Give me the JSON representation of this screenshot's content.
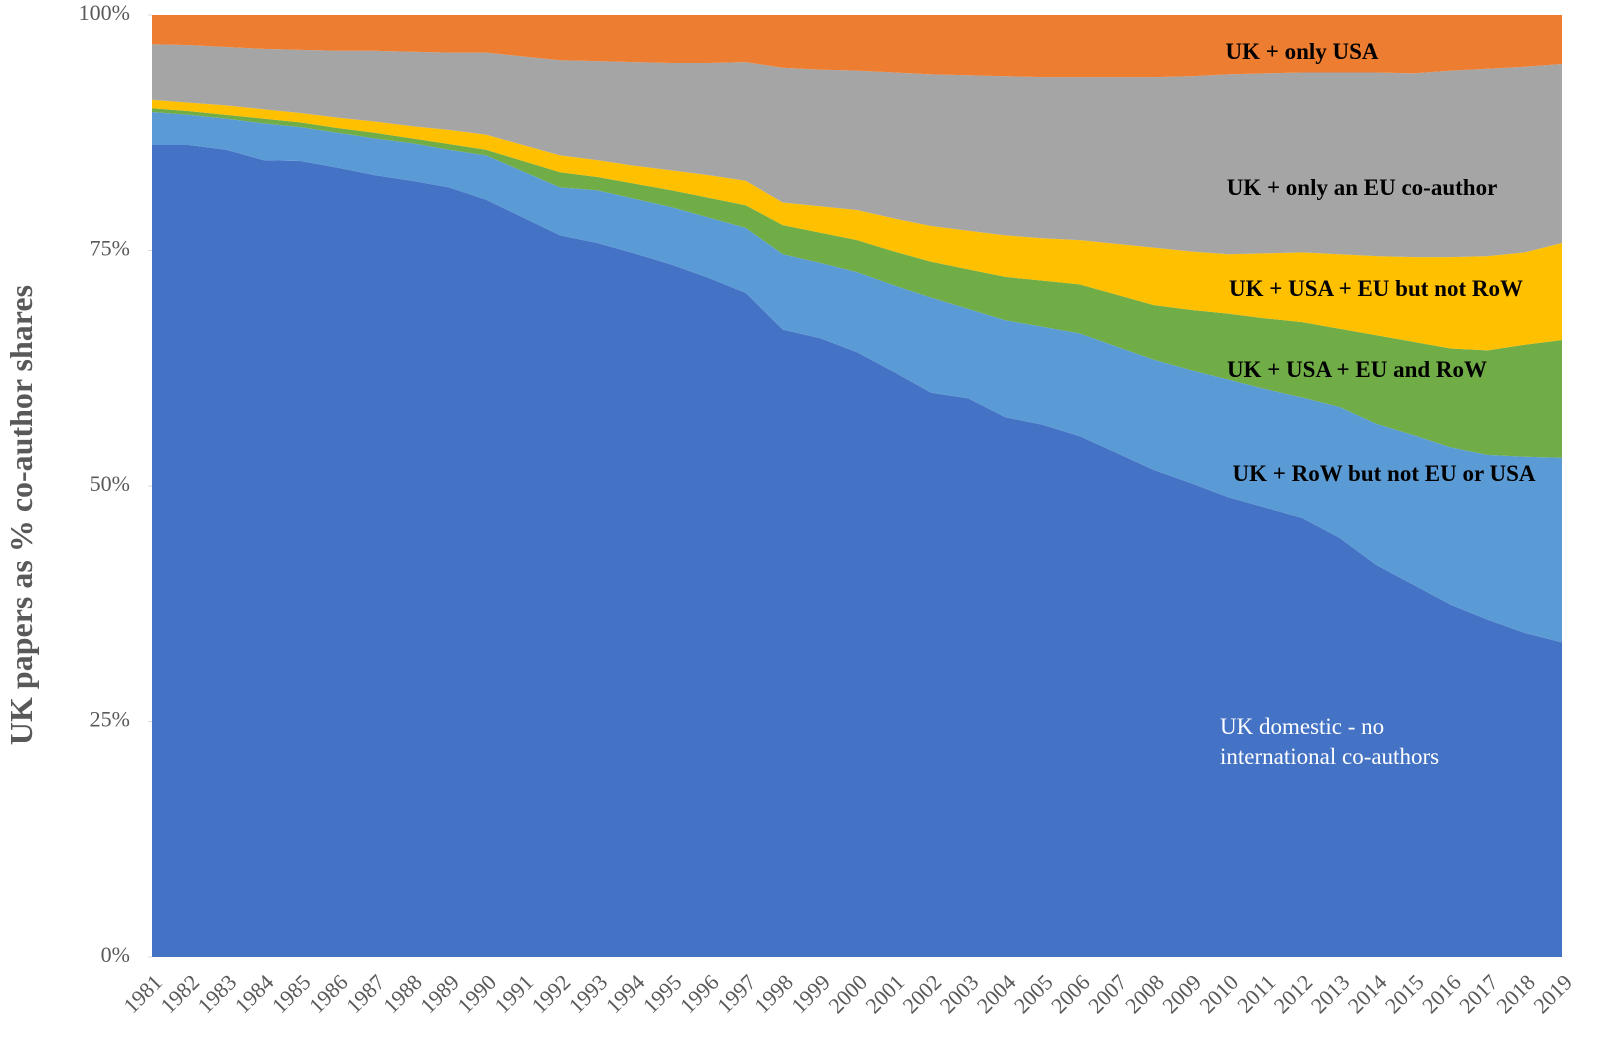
{
  "chart_data": {
    "type": "stacked-area",
    "y_axis_label": "UK papers as % co-author shares",
    "categories": [
      "1981",
      "1982",
      "1983",
      "1984",
      "1985",
      "1986",
      "1987",
      "1988",
      "1989",
      "1990",
      "1991",
      "1992",
      "1993",
      "1994",
      "1995",
      "1996",
      "1997",
      "1998",
      "1999",
      "2000",
      "2001",
      "2002",
      "2003",
      "2004",
      "2005",
      "2006",
      "2007",
      "2008",
      "2009",
      "2010",
      "2011",
      "2012",
      "2013",
      "2014",
      "2015",
      "2016",
      "2017",
      "2018",
      "2019"
    ],
    "ylim": [
      0,
      100
    ],
    "yticks": [
      {
        "value": 0,
        "label": "0%"
      },
      {
        "value": 25,
        "label": "25%"
      },
      {
        "value": 50,
        "label": "50%"
      },
      {
        "value": 75,
        "label": "75%"
      },
      {
        "value": 100,
        "label": "100%"
      }
    ],
    "series": [
      {
        "name": "UK domestic - no international co-authors",
        "color": "#4472c4",
        "values": [
          86.2,
          86.2,
          85.7,
          84.6,
          84.5,
          83.8,
          83.0,
          82.4,
          81.7,
          80.4,
          78.5,
          76.6,
          75.8,
          74.7,
          73.5,
          72.1,
          70.5,
          66.6,
          65.7,
          64.2,
          62.1,
          59.9,
          59.3,
          57.3,
          56.5,
          55.3,
          53.5,
          51.7,
          50.3,
          48.8,
          47.7,
          46.6,
          44.5,
          41.6,
          39.5,
          37.4,
          35.8,
          34.4,
          33.4
        ]
      },
      {
        "name": "UK + RoW but not EU or USA",
        "color": "#5b9bd5",
        "values": [
          3.5,
          3.2,
          3.3,
          3.9,
          3.6,
          3.7,
          3.9,
          4.0,
          4.0,
          4.7,
          4.9,
          5.1,
          5.6,
          5.8,
          6.1,
          6.4,
          6.9,
          8.0,
          8.0,
          8.5,
          9.2,
          10.1,
          9.5,
          10.3,
          10.4,
          10.9,
          11.3,
          11.7,
          12.0,
          12.5,
          12.6,
          12.8,
          13.9,
          15.0,
          15.9,
          16.7,
          17.5,
          18.7,
          19.6
        ]
      },
      {
        "name": "UK + USA + EU and RoW",
        "color": "#70ad47",
        "values": [
          0.4,
          0.4,
          0.4,
          0.5,
          0.5,
          0.5,
          0.6,
          0.5,
          0.6,
          0.6,
          1.1,
          1.6,
          1.4,
          1.6,
          1.8,
          2.1,
          2.4,
          3.1,
          3.2,
          3.4,
          3.6,
          3.8,
          4.2,
          4.6,
          4.9,
          5.2,
          5.5,
          5.8,
          6.4,
          7.0,
          7.5,
          8.0,
          8.3,
          9.4,
          9.9,
          10.5,
          11.1,
          11.9,
          12.5
        ]
      },
      {
        "name": "UK + USA + EU but not RoW",
        "color": "#ffc000",
        "values": [
          0.9,
          0.9,
          1.0,
          1.0,
          1.0,
          1.1,
          1.2,
          1.3,
          1.5,
          1.6,
          1.7,
          1.8,
          1.8,
          1.9,
          2.1,
          2.4,
          2.6,
          2.4,
          2.8,
          3.2,
          3.5,
          3.8,
          4.1,
          4.4,
          4.5,
          4.7,
          5.4,
          6.1,
          6.2,
          6.3,
          6.9,
          7.4,
          7.9,
          8.4,
          9.0,
          9.7,
          10.0,
          9.8,
          10.3
        ]
      },
      {
        "name": "UK + only an EU co-author",
        "color": "#a5a5a5",
        "values": [
          5.9,
          6.1,
          6.2,
          6.4,
          6.7,
          7.1,
          7.5,
          7.9,
          8.2,
          8.7,
          9.4,
          10.1,
          10.5,
          11.0,
          11.4,
          11.9,
          12.6,
          14.3,
          14.5,
          14.8,
          15.5,
          16.1,
          16.5,
          16.9,
          17.1,
          17.3,
          17.7,
          18.1,
          18.6,
          19.1,
          19.1,
          19.1,
          19.3,
          19.5,
          19.5,
          19.8,
          19.9,
          19.7,
          19.0
        ]
      },
      {
        "name": "UK + only USA",
        "color": "#ed7d31",
        "values": [
          3.1,
          3.2,
          3.4,
          3.6,
          3.7,
          3.8,
          3.8,
          3.9,
          4.0,
          4.0,
          4.4,
          4.8,
          4.9,
          5.0,
          5.1,
          5.1,
          5.0,
          5.6,
          5.8,
          5.9,
          6.1,
          6.3,
          6.4,
          6.5,
          6.6,
          6.6,
          6.6,
          6.6,
          6.5,
          6.3,
          6.2,
          6.1,
          6.1,
          6.1,
          6.2,
          5.9,
          5.7,
          5.5,
          5.2
        ]
      }
    ]
  }
}
